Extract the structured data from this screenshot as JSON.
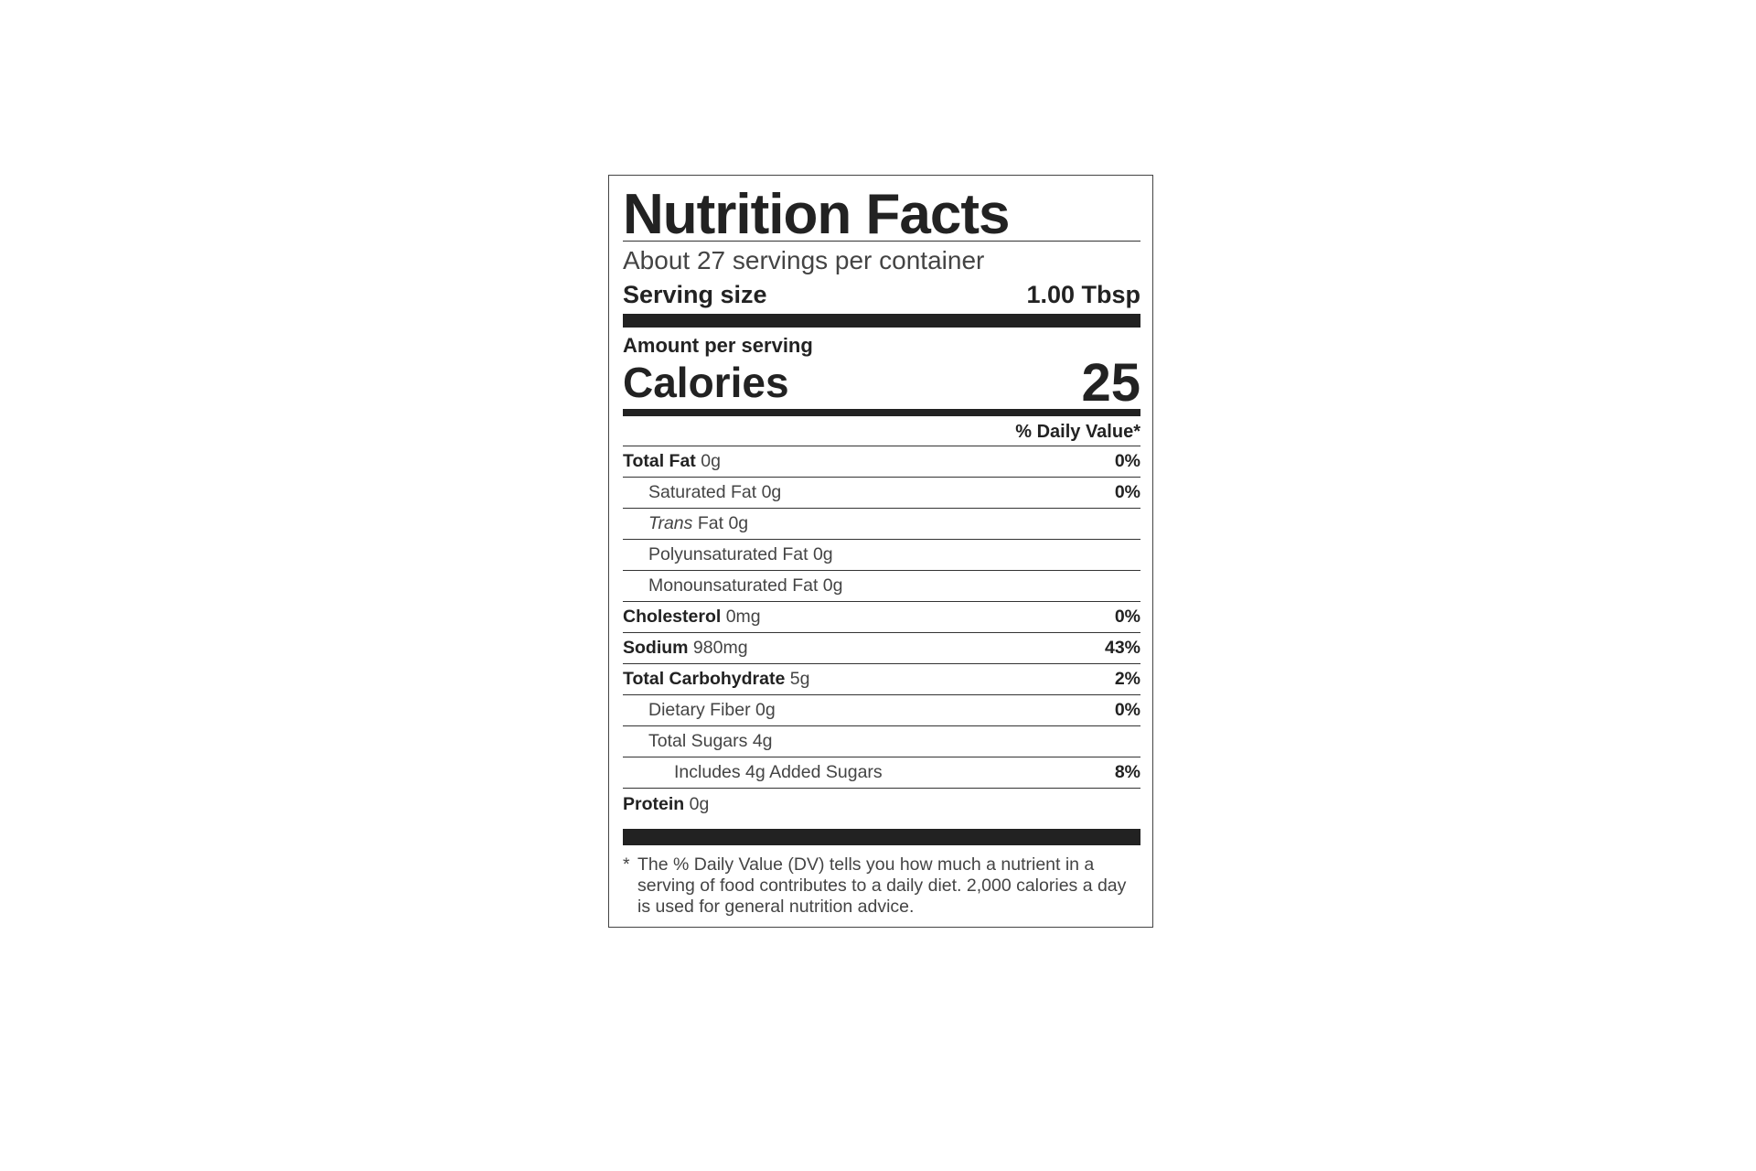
{
  "title": "Nutrition Facts",
  "servings_per_container": "About 27 servings per container",
  "serving_size": {
    "label": "Serving size",
    "value": "1.00 Tbsp"
  },
  "amount_per_serving": "Amount per serving",
  "calories": {
    "label": "Calories",
    "value": "25"
  },
  "daily_value_header": "% Daily Value*",
  "nutrients": [
    {
      "name": "Total Fat",
      "amount": "0g",
      "dv": "0%",
      "bold": true,
      "indent": 0
    },
    {
      "name": "Saturated Fat",
      "amount": "0g",
      "dv": "0%",
      "bold": false,
      "indent": 1
    },
    {
      "name": "Trans",
      "name_suffix": "Fat",
      "amount": "0g",
      "dv": "",
      "bold": false,
      "indent": 1,
      "italic": true
    },
    {
      "name": "Polyunsaturated Fat",
      "amount": "0g",
      "dv": "",
      "bold": false,
      "indent": 1
    },
    {
      "name": "Monounsaturated Fat",
      "amount": "0g",
      "dv": "",
      "bold": false,
      "indent": 1
    },
    {
      "name": "Cholesterol",
      "amount": "0mg",
      "dv": "0%",
      "bold": true,
      "indent": 0
    },
    {
      "name": "Sodium",
      "amount": "980mg",
      "dv": "43%",
      "bold": true,
      "indent": 0
    },
    {
      "name": "Total Carbohydrate",
      "amount": "5g",
      "dv": "2%",
      "bold": true,
      "indent": 0
    },
    {
      "name": "Dietary Fiber",
      "amount": "0g",
      "dv": "0%",
      "bold": false,
      "indent": 1
    },
    {
      "name": "Total Sugars",
      "amount": "4g",
      "dv": "",
      "bold": false,
      "indent": 1
    },
    {
      "name": "Includes 4g Added Sugars",
      "amount": "",
      "dv": "8%",
      "bold": false,
      "indent": 2
    },
    {
      "name": "Protein",
      "amount": "0g",
      "dv": "",
      "bold": true,
      "indent": 0,
      "last": true
    }
  ],
  "footnote": {
    "star": "*",
    "text": "The % Daily Value (DV) tells you how much a nutrient in a serving of food contributes to a daily diet. 2,000 calories a day is used for general nutrition advice."
  }
}
